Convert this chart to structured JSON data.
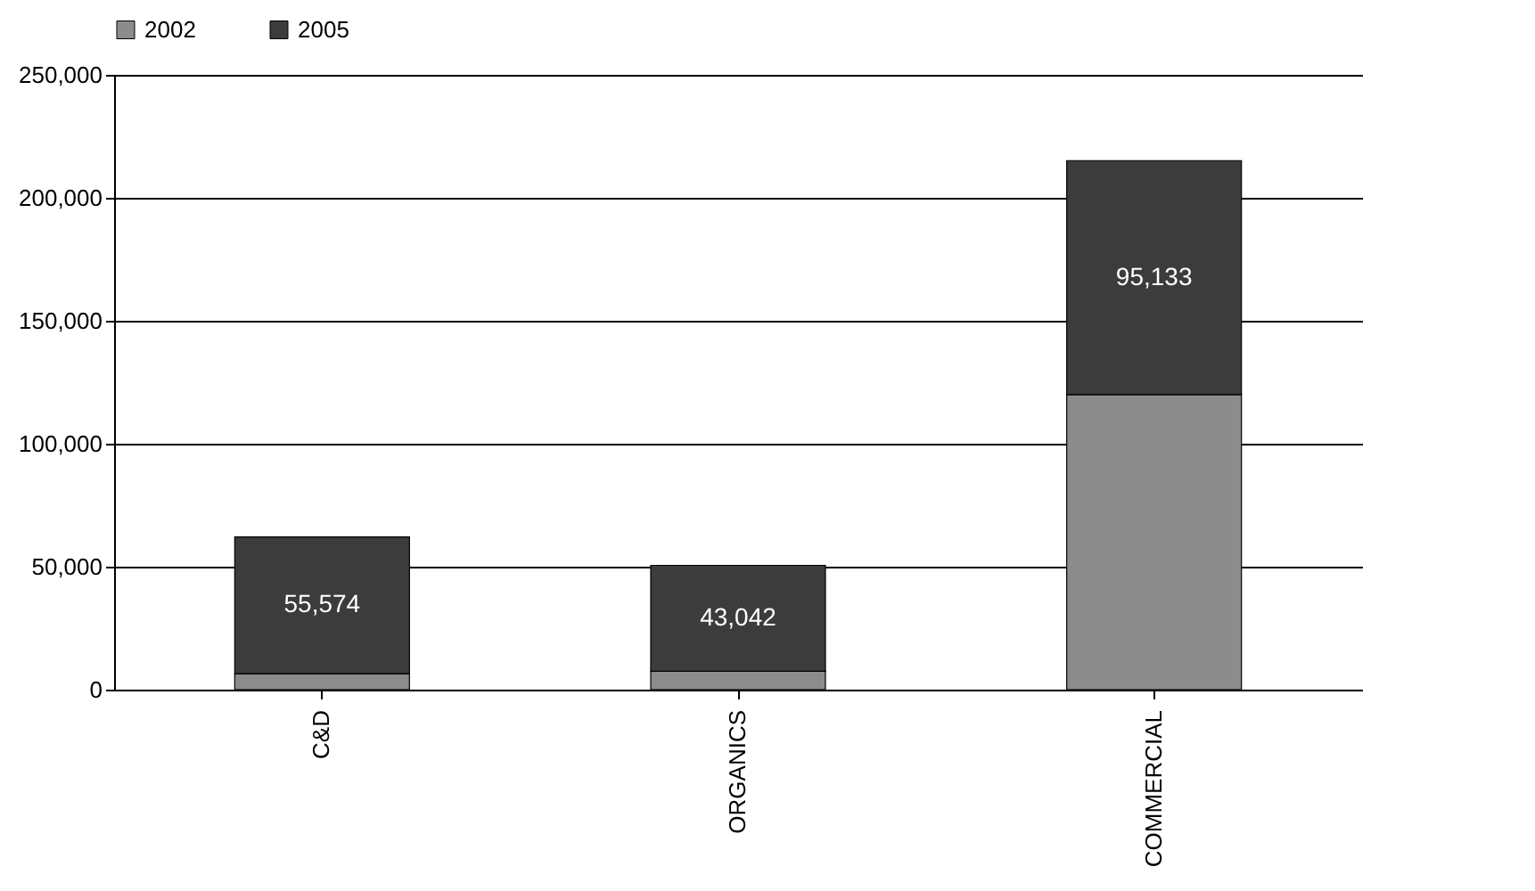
{
  "chart_data": {
    "type": "bar",
    "stacked": true,
    "categories": [
      "C&D",
      "ORGANICS",
      "COMMERCIAL"
    ],
    "series": [
      {
        "name": "2002",
        "color": "#8c8c8c",
        "values": [
          6500,
          7500,
          120000
        ]
      },
      {
        "name": "2005",
        "color": "#3c3c3c",
        "values": [
          55574,
          43042,
          95133
        ],
        "value_labels": [
          "55,574",
          "43,042",
          "95,133"
        ]
      }
    ],
    "ylim": [
      0,
      250000
    ],
    "yticks": [
      {
        "value": 0,
        "label": "0"
      },
      {
        "value": 50000,
        "label": "50,000"
      },
      {
        "value": 100000,
        "label": "100,000"
      },
      {
        "value": 150000,
        "label": "150,000"
      },
      {
        "value": 200000,
        "label": "200,000"
      },
      {
        "value": 250000,
        "label": "250,000"
      }
    ],
    "grid": "y",
    "legend": "top"
  }
}
